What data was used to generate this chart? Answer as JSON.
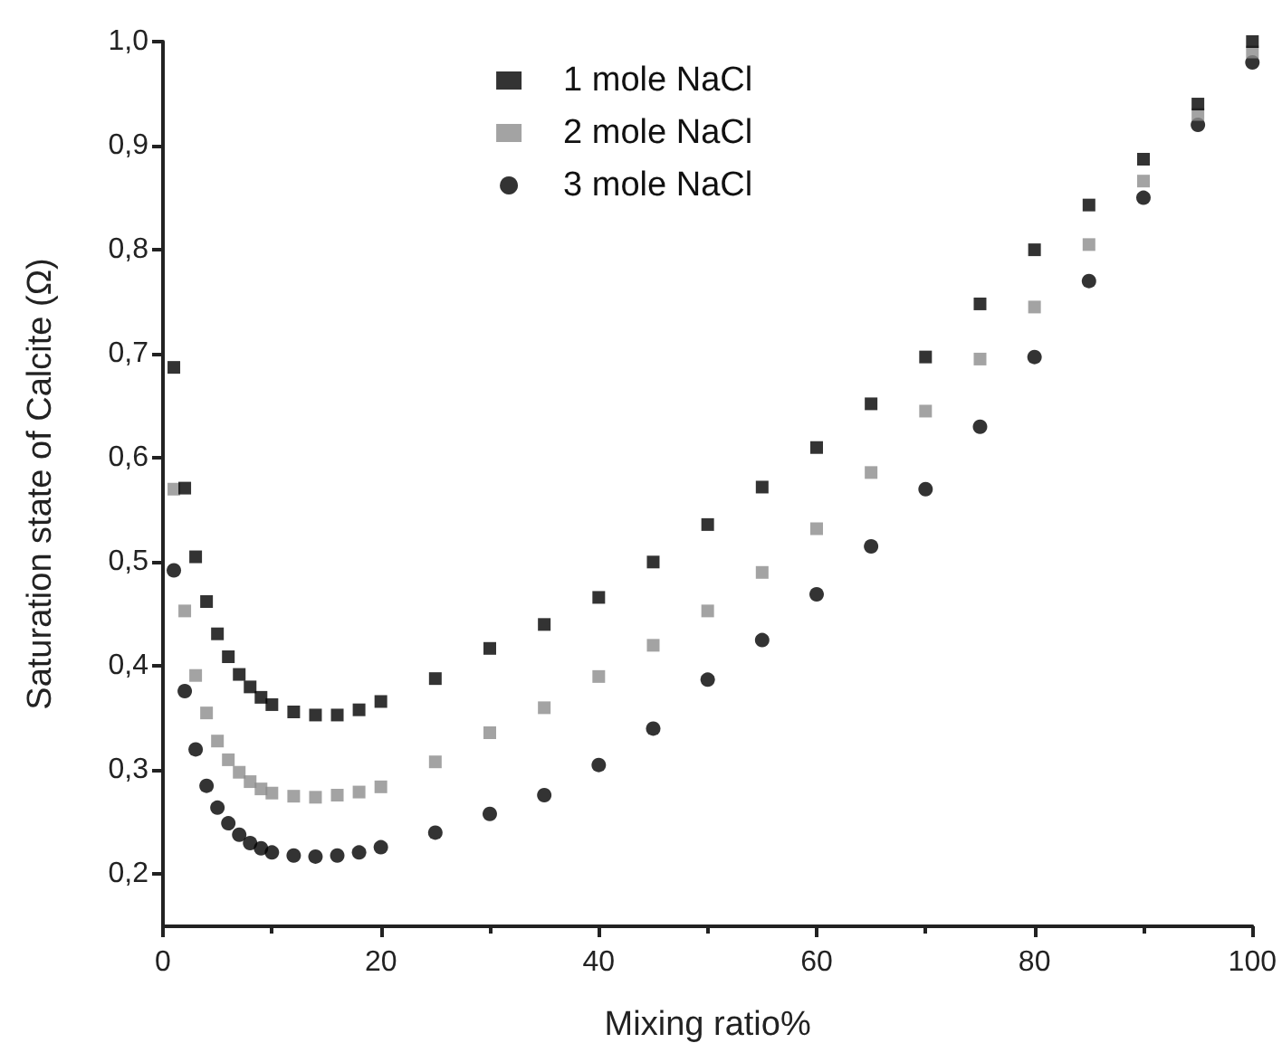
{
  "chart_data": {
    "type": "scatter",
    "xlabel": "Mixing ratio%",
    "ylabel": "Saturation state of Calcite (Ω)",
    "xlim": [
      0,
      100
    ],
    "xticks": [
      0,
      20,
      40,
      60,
      80,
      100
    ],
    "ylim": [
      0.15,
      1.0
    ],
    "yticks": [
      {
        "value": 0.2,
        "label": "0,2"
      },
      {
        "value": 0.3,
        "label": "0,3"
      },
      {
        "value": 0.4,
        "label": "0,4"
      },
      {
        "value": 0.5,
        "label": "0,5"
      },
      {
        "value": 0.6,
        "label": "0,6"
      },
      {
        "value": 0.7,
        "label": "0,7"
      },
      {
        "value": 0.8,
        "label": "0,8"
      },
      {
        "value": 0.9,
        "label": "0,9"
      },
      {
        "value": 1.0,
        "label": "1,0"
      }
    ],
    "grid": false,
    "legend": "top",
    "x": [
      1,
      2,
      3,
      4,
      5,
      6,
      7,
      8,
      9,
      10,
      12,
      14,
      16,
      18,
      20,
      25,
      30,
      35,
      40,
      45,
      50,
      55,
      60,
      65,
      70,
      75,
      80,
      85,
      90,
      95,
      100
    ],
    "series": [
      {
        "name": "1 mole NaCl",
        "color": "#000000",
        "marker": "square",
        "values": [
          0.687,
          0.571,
          0.505,
          0.462,
          0.431,
          0.409,
          0.392,
          0.38,
          0.37,
          0.363,
          0.356,
          0.353,
          0.353,
          0.358,
          0.366,
          0.388,
          0.417,
          0.44,
          0.466,
          0.5,
          0.536,
          0.572,
          0.61,
          0.652,
          0.697,
          0.748,
          0.8,
          0.843,
          0.887,
          0.94,
          1.0
        ]
      },
      {
        "name": "2 mole NaCl",
        "color": "#8c8c8c",
        "marker": "square",
        "values": [
          0.57,
          0.453,
          0.391,
          0.355,
          0.328,
          0.31,
          0.298,
          0.289,
          0.282,
          0.278,
          0.275,
          0.274,
          0.276,
          0.279,
          0.284,
          0.308,
          0.336,
          0.36,
          0.39,
          0.42,
          0.453,
          0.49,
          0.532,
          0.586,
          0.645,
          0.695,
          0.745,
          0.805,
          0.866,
          0.93,
          0.99
        ]
      },
      {
        "name": "3 mole NaCl",
        "color": "#000000",
        "marker": "circle",
        "values": [
          0.492,
          0.376,
          0.32,
          0.285,
          0.264,
          0.249,
          0.238,
          0.23,
          0.225,
          0.221,
          0.218,
          0.217,
          0.218,
          0.221,
          0.226,
          0.24,
          0.258,
          0.276,
          0.305,
          0.34,
          0.387,
          0.425,
          0.469,
          0.515,
          0.57,
          0.63,
          0.697,
          0.77,
          0.85,
          0.92,
          0.98
        ]
      }
    ]
  }
}
